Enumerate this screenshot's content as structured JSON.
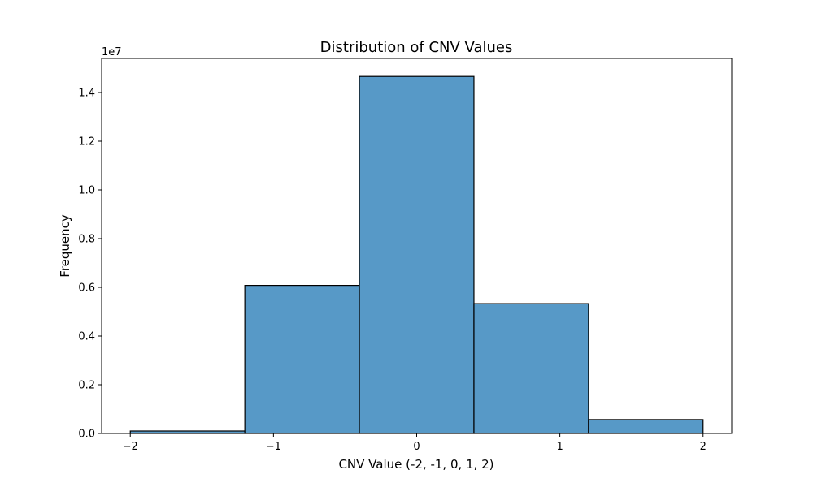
{
  "chart_data": {
    "type": "bar",
    "title": "Distribution of CNV Values",
    "xlabel": "CNV Value (-2, -1, 0, 1, 2)",
    "ylabel": "Frequency",
    "y_scale_label": "1e7",
    "bins": [
      {
        "start": -2.0,
        "end": -1.2,
        "value": 100000
      },
      {
        "start": -1.2,
        "end": -0.4,
        "value": 6080000
      },
      {
        "start": -0.4,
        "end": 0.4,
        "value": 14660000
      },
      {
        "start": 0.4,
        "end": 1.2,
        "value": 5330000
      },
      {
        "start": 1.2,
        "end": 2.0,
        "value": 570000
      }
    ],
    "xlim": [
      -2.2,
      2.2
    ],
    "ylim": [
      0,
      15400000
    ],
    "x_ticks": [
      {
        "value": -2,
        "label": "−2"
      },
      {
        "value": -1,
        "label": "−1"
      },
      {
        "value": 0,
        "label": "0"
      },
      {
        "value": 1,
        "label": "1"
      },
      {
        "value": 2,
        "label": "2"
      }
    ],
    "y_ticks": [
      {
        "value": 0,
        "label": "0.0"
      },
      {
        "value": 2000000,
        "label": "0.2"
      },
      {
        "value": 4000000,
        "label": "0.4"
      },
      {
        "value": 6000000,
        "label": "0.6"
      },
      {
        "value": 8000000,
        "label": "0.8"
      },
      {
        "value": 10000000,
        "label": "1.0"
      },
      {
        "value": 12000000,
        "label": "1.2"
      },
      {
        "value": 14000000,
        "label": "1.4"
      }
    ],
    "grid": false,
    "bar_color": "#5799c7",
    "edge_color": "#000000"
  }
}
